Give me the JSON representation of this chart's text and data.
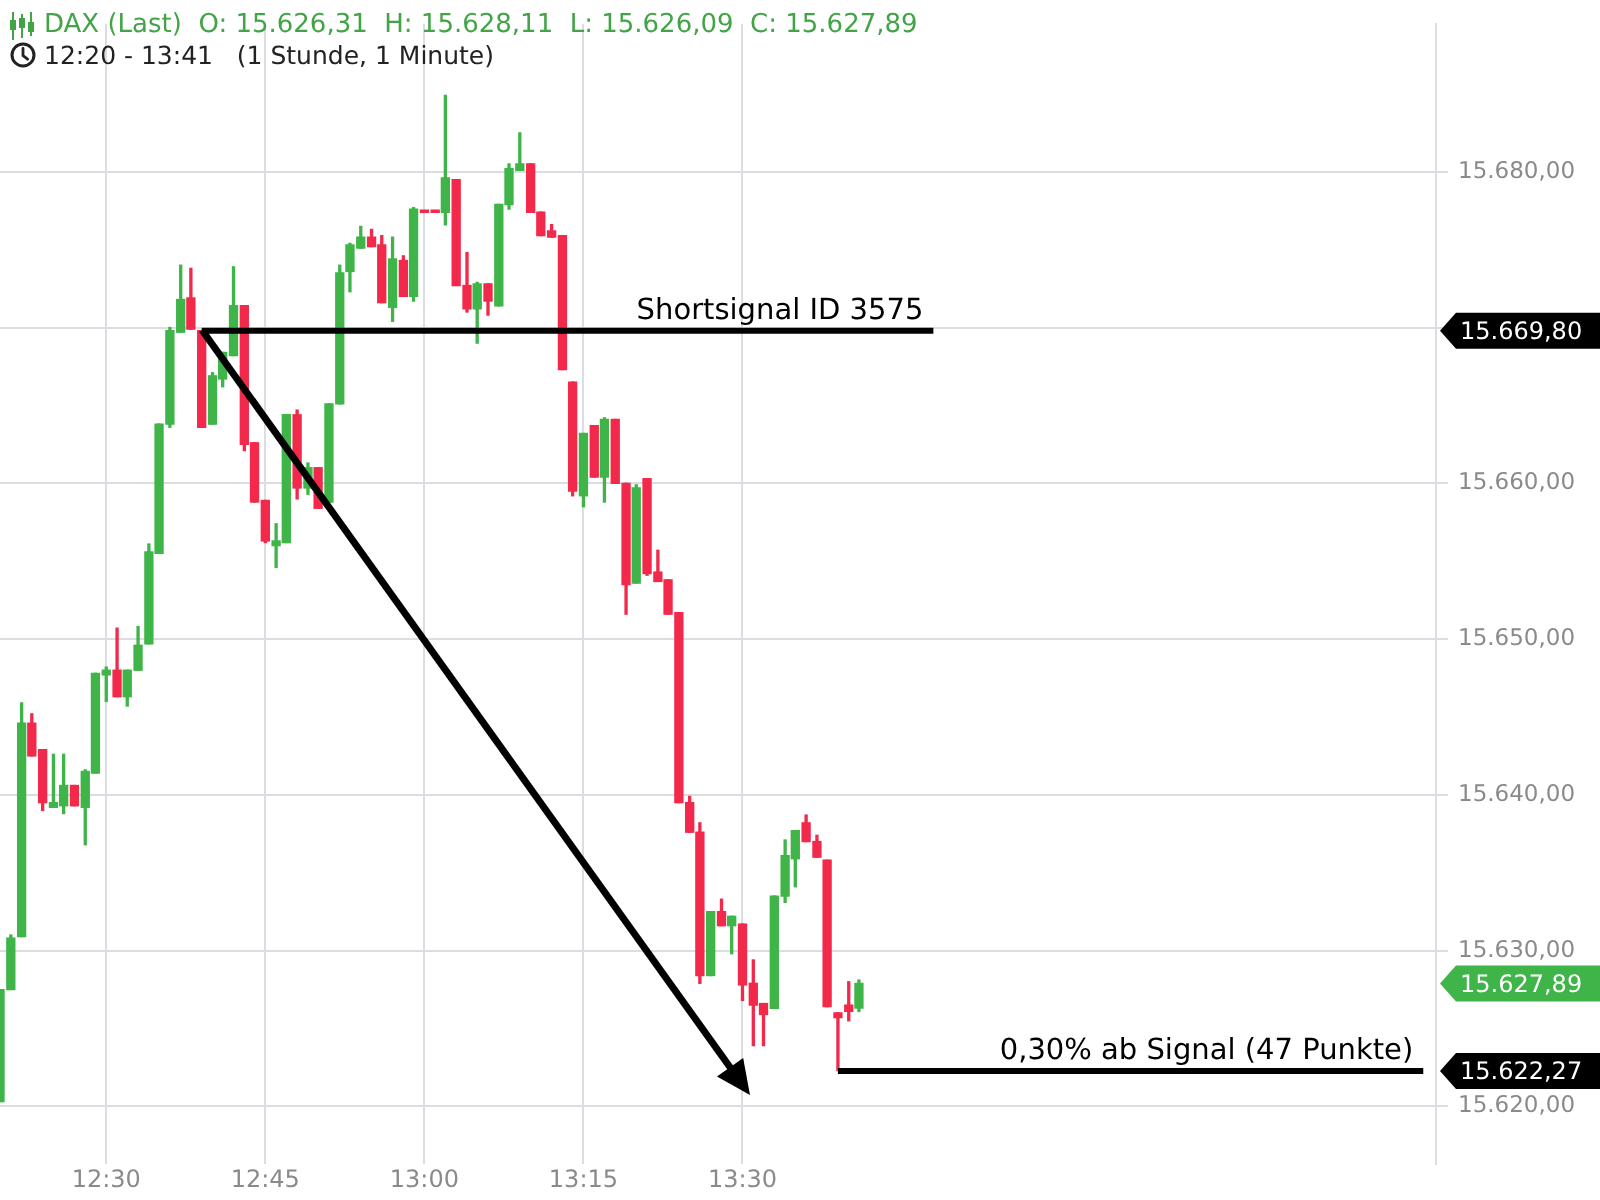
{
  "chart_data": {
    "type": "candlestick",
    "title": "DAX (Last)  O: 15.626,31  H: 15.628,11  L: 15.626,09  C: 15.627,89",
    "subtitle": "12:20 - 13:41   (1 Stunde, 1 Minute)",
    "x": [
      12.333,
      12.35,
      12.367,
      12.383,
      12.4,
      12.417,
      12.433,
      12.45,
      12.467,
      12.483,
      12.5,
      12.517,
      12.533,
      12.55,
      12.567,
      12.583,
      12.6,
      12.617,
      12.633,
      12.65,
      12.667,
      12.683,
      12.7,
      12.717,
      12.733,
      12.75,
      12.767,
      12.783,
      12.8,
      12.817,
      12.833,
      12.85,
      12.867,
      12.883,
      12.9,
      12.917,
      12.933,
      12.95,
      12.967,
      12.983,
      13,
      13.017,
      13.033,
      13.05,
      13.067,
      13.083,
      13.1,
      13.117,
      13.133,
      13.15,
      13.167,
      13.183,
      13.2,
      13.217,
      13.233,
      13.25,
      13.267,
      13.283,
      13.3,
      13.317,
      13.333,
      13.35,
      13.367,
      13.383,
      13.4,
      13.417,
      13.433,
      13.45,
      13.467,
      13.483,
      13.5,
      13.517,
      13.533,
      13.55,
      13.567,
      13.583,
      13.6,
      13.617,
      13.633,
      13.65,
      13.667,
      13.683
    ],
    "ohlc": [
      [
        15620.3,
        15627.5,
        15620.3,
        15627.5
      ],
      [
        15627.5,
        15631.0,
        15627.5,
        15630.8
      ],
      [
        15630.9,
        15645.9,
        15630.9,
        15644.6
      ],
      [
        15644.6,
        15645.2,
        15642.5,
        15642.5
      ],
      [
        15642.9,
        15642.9,
        15639.0,
        15639.5
      ],
      [
        15639.2,
        15642.6,
        15639.2,
        15639.5
      ],
      [
        15639.3,
        15642.6,
        15638.8,
        15640.6
      ],
      [
        15640.6,
        15640.6,
        15639.3,
        15639.3
      ],
      [
        15639.2,
        15641.6,
        15636.8,
        15641.5
      ],
      [
        15641.4,
        15647.8,
        15641.4,
        15647.8
      ],
      [
        15647.7,
        15648.2,
        15646.0,
        15648.0
      ],
      [
        15648.0,
        15650.7,
        15646.3,
        15646.3
      ],
      [
        15646.3,
        15648.0,
        15645.7,
        15648.0
      ],
      [
        15648.0,
        15650.8,
        15648.0,
        15649.6
      ],
      [
        15649.7,
        15656.1,
        15649.7,
        15655.6
      ],
      [
        15655.5,
        15663.8,
        15655.5,
        15663.8
      ],
      [
        15663.8,
        15670.0,
        15663.6,
        15669.8
      ],
      [
        15669.7,
        15674.0,
        15669.7,
        15671.8
      ],
      [
        15671.9,
        15673.8,
        15669.9,
        15669.9
      ],
      [
        15669.8,
        15669.8,
        15663.6,
        15663.6
      ],
      [
        15663.8,
        15667.1,
        15663.8,
        15666.9
      ],
      [
        15666.7,
        15668.4,
        15666.2,
        15668.4
      ],
      [
        15668.2,
        15673.9,
        15668.2,
        15671.4
      ],
      [
        15671.4,
        15671.4,
        15662.1,
        15662.5
      ],
      [
        15662.6,
        15662.6,
        15658.8,
        15658.8
      ],
      [
        15658.9,
        15658.9,
        15656.2,
        15656.3
      ],
      [
        15656.0,
        15657.4,
        15654.6,
        15656.3
      ],
      [
        15656.2,
        15664.4,
        15656.2,
        15664.4
      ],
      [
        15664.4,
        15664.7,
        15659.0,
        15659.7
      ],
      [
        15659.7,
        15661.3,
        15659.3,
        15661.0
      ],
      [
        15661.0,
        15661.0,
        15658.4,
        15658.4
      ],
      [
        15658.8,
        15665.1,
        15658.8,
        15665.1
      ],
      [
        15665.1,
        15674.0,
        15665.1,
        15673.5
      ],
      [
        15673.6,
        15675.4,
        15672.3,
        15675.3
      ],
      [
        15675.1,
        15676.5,
        15675.1,
        15675.8
      ],
      [
        15675.8,
        15676.3,
        15675.2,
        15675.2
      ],
      [
        15675.3,
        15675.9,
        15671.6,
        15671.6
      ],
      [
        15671.3,
        15675.8,
        15670.4,
        15674.4
      ],
      [
        15674.3,
        15674.6,
        15672.0,
        15672.0
      ],
      [
        15672.0,
        15677.7,
        15671.7,
        15677.6
      ],
      [
        15677.4,
        15677.4,
        15677.4,
        15677.4
      ],
      [
        15677.4,
        15677.4,
        15677.4,
        15677.4
      ],
      [
        15677.4,
        15684.9,
        15676.6,
        15679.6
      ],
      [
        15679.5,
        15679.5,
        15672.7,
        15672.7
      ],
      [
        15672.7,
        15674.8,
        15671.0,
        15671.2
      ],
      [
        15671.2,
        15672.9,
        15669.0,
        15672.8
      ],
      [
        15672.8,
        15672.8,
        15670.8,
        15671.7
      ],
      [
        15671.4,
        15677.9,
        15671.4,
        15677.9
      ],
      [
        15677.9,
        15680.5,
        15677.6,
        15680.2
      ],
      [
        15680.1,
        15682.5,
        15680.1,
        15680.5
      ],
      [
        15680.5,
        15680.5,
        15677.4,
        15677.4
      ],
      [
        15677.4,
        15677.4,
        15675.9,
        15675.9
      ],
      [
        15676.2,
        15676.6,
        15675.8,
        15675.8
      ],
      [
        15675.9,
        15675.9,
        15667.3,
        15667.3
      ],
      [
        15666.5,
        15666.5,
        15659.2,
        15659.5
      ],
      [
        15659.2,
        15663.2,
        15658.5,
        15663.2
      ],
      [
        15663.7,
        15663.7,
        15660.4,
        15660.4
      ],
      [
        15660.4,
        15664.2,
        15658.8,
        15664.1
      ],
      [
        15664.1,
        15664.1,
        15660.0,
        15660.0
      ],
      [
        15660.0,
        15660.0,
        15651.6,
        15653.5
      ],
      [
        15653.6,
        15659.9,
        15653.6,
        15659.7
      ],
      [
        15660.3,
        15660.3,
        15654.1,
        15654.2
      ],
      [
        15654.3,
        15655.7,
        15653.7,
        15653.7
      ],
      [
        15653.8,
        15653.8,
        15651.6,
        15651.6
      ],
      [
        15651.7,
        15651.7,
        15639.5,
        15639.5
      ],
      [
        15639.5,
        15639.9,
        15637.6,
        15637.6
      ],
      [
        15637.6,
        15638.2,
        15627.9,
        15628.4
      ],
      [
        15628.4,
        15632.5,
        15628.4,
        15632.5
      ],
      [
        15632.5,
        15633.3,
        15631.6,
        15631.6
      ],
      [
        15631.6,
        15632.2,
        15629.8,
        15632.2
      ],
      [
        15631.7,
        15631.7,
        15626.8,
        15627.8
      ],
      [
        15627.9,
        15629.4,
        15623.9,
        15626.5
      ],
      [
        15626.6,
        15626.6,
        15623.9,
        15625.9
      ],
      [
        15626.3,
        15633.5,
        15626.3,
        15633.5
      ],
      [
        15633.5,
        15637.1,
        15633.1,
        15636.1
      ],
      [
        15635.9,
        15637.7,
        15634.1,
        15637.7
      ],
      [
        15638.2,
        15638.7,
        15637.0,
        15637.0
      ],
      [
        15637.0,
        15637.4,
        15636.0,
        15636.0
      ],
      [
        15635.8,
        15635.8,
        15626.4,
        15626.4
      ],
      [
        15626.0,
        15626.0,
        15622.3,
        15625.7
      ],
      [
        15626.5,
        15628.0,
        15625.5,
        15626.1
      ],
      [
        15626.31,
        15628.11,
        15626.09,
        15627.89
      ]
    ],
    "colors": [
      "#3fb449",
      "#3fb449",
      "#3fb449",
      "#f2294b",
      "#f2294b",
      "#3fb449",
      "#3fb449",
      "#f2294b",
      "#3fb449",
      "#3fb449",
      "#3fb449",
      "#f2294b",
      "#3fb449",
      "#3fb449",
      "#3fb449",
      "#3fb449",
      "#3fb449",
      "#3fb449",
      "#f2294b",
      "#f2294b",
      "#3fb449",
      "#3fb449",
      "#3fb449",
      "#f2294b",
      "#f2294b",
      "#f2294b",
      "#3fb449",
      "#3fb449",
      "#f2294b",
      "#3fb449",
      "#f2294b",
      "#3fb449",
      "#3fb449",
      "#3fb449",
      "#3fb449",
      "#f2294b",
      "#f2294b",
      "#3fb449",
      "#f2294b",
      "#3fb449",
      "#f2294b",
      "#f2294b",
      "#3fb449",
      "#f2294b",
      "#f2294b",
      "#3fb449",
      "#f2294b",
      "#3fb449",
      "#3fb449",
      "#3fb449",
      "#f2294b",
      "#f2294b",
      "#f2294b",
      "#f2294b",
      "#f2294b",
      "#3fb449",
      "#f2294b",
      "#3fb449",
      "#f2294b",
      "#f2294b",
      "#3fb449",
      "#f2294b",
      "#f2294b",
      "#f2294b",
      "#f2294b",
      "#f2294b",
      "#f2294b",
      "#3fb449",
      "#f2294b",
      "#3fb449",
      "#f2294b",
      "#f2294b",
      "#f2294b",
      "#3fb449",
      "#3fb449",
      "#3fb449",
      "#f2294b",
      "#f2294b",
      "#f2294b",
      "#f2294b",
      "#f2294b",
      "#3fb449"
    ],
    "value_labels": [
      null,
      null,
      null,
      null,
      null,
      null,
      null,
      null,
      null,
      null,
      null,
      null,
      null,
      null,
      null,
      null,
      null,
      null,
      null,
      null,
      null,
      null,
      null,
      null,
      null,
      null,
      null,
      null,
      null,
      null,
      null,
      null,
      null,
      null,
      null,
      null,
      null,
      null,
      null,
      null,
      null,
      null,
      null,
      null,
      null,
      null,
      null,
      null,
      null,
      null,
      null,
      null,
      null,
      null,
      null,
      null,
      null,
      null,
      null,
      null,
      null,
      null,
      null,
      null,
      null,
      null,
      null,
      null,
      null,
      null,
      null,
      null,
      null,
      null,
      null,
      null,
      null,
      null,
      null,
      null,
      null,
      "15.627,89"
    ],
    "series": [
      {
        "type": "line",
        "name": "Shortsignal ID 3575",
        "color": "#000000",
        "x": [
          12.65,
          13.8
        ],
        "values": [
          15669.8,
          15669.8
        ]
      },
      {
        "type": "line",
        "name": "0,30% ab Signal (47 Punkte)",
        "color": "#000000",
        "x": [
          13.65,
          14.57
        ],
        "values": [
          15622.27,
          15622.27
        ],
        "value_labels": [
          null,
          "15.622,27"
        ]
      }
    ],
    "annotations": [
      "15.669,80"
    ],
    "xlim": [
      12.333,
      14.59
    ],
    "xticks": [
      {
        "value": 12.5,
        "label": "12:30"
      },
      {
        "value": 12.75,
        "label": "12:45"
      },
      {
        "value": 13,
        "label": "13:00"
      },
      {
        "value": 13.25,
        "label": "13:15"
      },
      {
        "value": 13.5,
        "label": "13:30"
      }
    ],
    "ylim": [
      15616.3,
      15689.5
    ],
    "yticks": [
      {
        "value": 15620,
        "label": "15.620,00"
      },
      {
        "value": 15630,
        "label": "15.630,00"
      },
      {
        "value": 15640,
        "label": "15.640,00"
      },
      {
        "value": 15650,
        "label": "15.650,00"
      },
      {
        "value": 15660,
        "label": "15.660,00"
      },
      {
        "value": 15670,
        "label": null
      },
      {
        "value": 15680,
        "label": "15.680,00"
      }
    ],
    "grid": true
  }
}
